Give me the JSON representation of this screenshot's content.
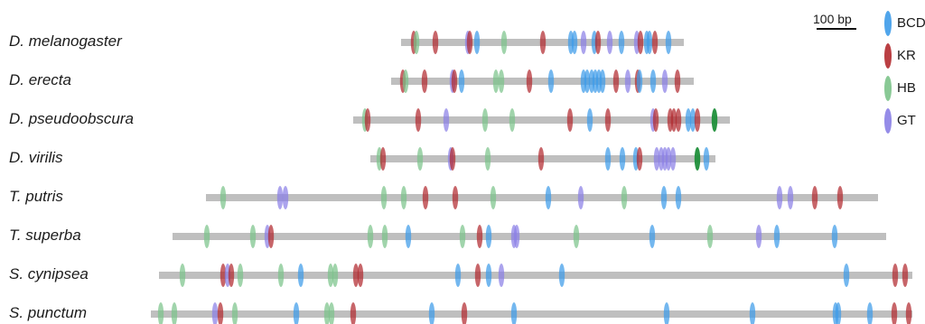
{
  "scale": {
    "label": "100 bp"
  },
  "legend": [
    {
      "name": "BCD",
      "color": "#3d9be9"
    },
    {
      "name": "KR",
      "color": "#b22a2f"
    },
    {
      "name": "HB",
      "color": "#7cc38a"
    },
    {
      "name": "GT",
      "color": "#8a7fe6"
    }
  ],
  "colors": {
    "HB_dark": "#1f8f3a",
    "bar": "#bfbfbf"
  },
  "species": [
    {
      "name": "D. melanogaster",
      "start": 444,
      "end": 757,
      "sites": [
        [
          "KR",
          458
        ],
        [
          "HB",
          461
        ],
        [
          "KR",
          482
        ],
        [
          "GT",
          518
        ],
        [
          "KR",
          520
        ],
        [
          "BCD",
          528
        ],
        [
          "HB",
          558
        ],
        [
          "KR",
          601
        ],
        [
          "BCD",
          632
        ],
        [
          "BCD",
          636
        ],
        [
          "GT",
          646
        ],
        [
          "BCD",
          658
        ],
        [
          "KR",
          662
        ],
        [
          "GT",
          675
        ],
        [
          "BCD",
          688
        ],
        [
          "GT",
          705
        ],
        [
          "KR",
          709
        ],
        [
          "BCD",
          716
        ],
        [
          "BCD",
          719
        ],
        [
          "KR",
          725
        ],
        [
          "BCD",
          740
        ]
      ]
    },
    {
      "name": "D. erecta",
      "start": 433,
      "end": 768,
      "sites": [
        [
          "KR",
          446
        ],
        [
          "HB",
          449
        ],
        [
          "KR",
          470
        ],
        [
          "GT",
          501
        ],
        [
          "KR",
          503
        ],
        [
          "BCD",
          511
        ],
        [
          "HB",
          549
        ],
        [
          "HB",
          555
        ],
        [
          "KR",
          586
        ],
        [
          "BCD",
          610
        ],
        [
          "BCD",
          646
        ],
        [
          "BCD",
          650
        ],
        [
          "BCD",
          655
        ],
        [
          "BCD",
          659
        ],
        [
          "BCD",
          663
        ],
        [
          "BCD",
          667
        ],
        [
          "KR",
          682
        ],
        [
          "GT",
          695
        ],
        [
          "KR",
          706
        ],
        [
          "BCD",
          708
        ],
        [
          "BCD",
          723
        ],
        [
          "GT",
          736
        ],
        [
          "KR",
          750
        ]
      ]
    },
    {
      "name": "D. pseudoobscura",
      "start": 391,
      "end": 808,
      "sites": [
        [
          "HB",
          404
        ],
        [
          "KR",
          407
        ],
        [
          "KR",
          463
        ],
        [
          "GT",
          494
        ],
        [
          "HB",
          537
        ],
        [
          "HB",
          567
        ],
        [
          "KR",
          631
        ],
        [
          "BCD",
          653
        ],
        [
          "KR",
          673
        ],
        [
          "GT",
          723
        ],
        [
          "KR",
          726
        ],
        [
          "KR",
          742
        ],
        [
          "KR",
          746
        ],
        [
          "KR",
          751
        ],
        [
          "BCD",
          762
        ],
        [
          "BCD",
          767
        ],
        [
          "KR",
          772
        ],
        [
          "HB_dark",
          791
        ]
      ]
    },
    {
      "name": "D. virilis",
      "start": 410,
      "end": 792,
      "sites": [
        [
          "HB",
          420
        ],
        [
          "KR",
          424
        ],
        [
          "HB",
          465
        ],
        [
          "GT",
          499
        ],
        [
          "KR",
          501
        ],
        [
          "HB",
          540
        ],
        [
          "KR",
          599
        ],
        [
          "BCD",
          673
        ],
        [
          "BCD",
          689
        ],
        [
          "BCD",
          704
        ],
        [
          "KR",
          708
        ],
        [
          "GT",
          727
        ],
        [
          "GT",
          732
        ],
        [
          "GT",
          736
        ],
        [
          "GT",
          740
        ],
        [
          "GT",
          745
        ],
        [
          "HB_dark",
          772
        ],
        [
          "BCD",
          782
        ]
      ]
    },
    {
      "name": "T. putris",
      "start": 228,
      "end": 972,
      "sites": [
        [
          "HB",
          247
        ],
        [
          "GT",
          310
        ],
        [
          "GT",
          316
        ],
        [
          "HB",
          425
        ],
        [
          "HB",
          447
        ],
        [
          "KR",
          471
        ],
        [
          "KR",
          504
        ],
        [
          "HB",
          546
        ],
        [
          "BCD",
          607
        ],
        [
          "GT",
          643
        ],
        [
          "HB",
          691
        ],
        [
          "BCD",
          735
        ],
        [
          "BCD",
          751
        ],
        [
          "GT",
          863
        ],
        [
          "GT",
          875
        ],
        [
          "KR",
          902
        ],
        [
          "KR",
          930
        ]
      ]
    },
    {
      "name": "T. superba",
      "start": 191,
      "end": 981,
      "sites": [
        [
          "HB",
          229
        ],
        [
          "HB",
          280
        ],
        [
          "GT",
          296
        ],
        [
          "KR",
          300
        ],
        [
          "HB",
          410
        ],
        [
          "HB",
          426
        ],
        [
          "BCD",
          452
        ],
        [
          "HB",
          512
        ],
        [
          "KR",
          531
        ],
        [
          "BCD",
          541
        ],
        [
          "GT",
          569
        ],
        [
          "GT",
          572
        ],
        [
          "HB",
          638
        ],
        [
          "BCD",
          722
        ],
        [
          "HB",
          786
        ],
        [
          "GT",
          840
        ],
        [
          "BCD",
          860
        ],
        [
          "BCD",
          924
        ]
      ]
    },
    {
      "name": "S. cynipsea",
      "start": 176,
      "end": 1010,
      "sites": [
        [
          "HB",
          202
        ],
        [
          "KR",
          247
        ],
        [
          "GT",
          252
        ],
        [
          "KR",
          256
        ],
        [
          "HB",
          266
        ],
        [
          "HB",
          311
        ],
        [
          "BCD",
          333
        ],
        [
          "HB",
          366
        ],
        [
          "HB",
          371
        ],
        [
          "KR",
          394
        ],
        [
          "KR",
          399
        ],
        [
          "BCD",
          507
        ],
        [
          "KR",
          529
        ],
        [
          "BCD",
          541
        ],
        [
          "GT",
          555
        ],
        [
          "BCD",
          622
        ],
        [
          "BCD",
          937
        ],
        [
          "KR",
          991
        ],
        [
          "KR",
          1002
        ]
      ]
    },
    {
      "name": "S. punctum",
      "start": 167,
      "end": 1010,
      "sites": [
        [
          "HB",
          178
        ],
        [
          "HB",
          193
        ],
        [
          "GT",
          238
        ],
        [
          "KR",
          244
        ],
        [
          "HB",
          260
        ],
        [
          "BCD",
          328
        ],
        [
          "HB",
          362
        ],
        [
          "HB",
          367
        ],
        [
          "KR",
          391
        ],
        [
          "BCD",
          478
        ],
        [
          "KR",
          514
        ],
        [
          "BCD",
          569
        ],
        [
          "BCD",
          738
        ],
        [
          "BCD",
          833
        ],
        [
          "BCD",
          925
        ],
        [
          "BCD",
          928
        ],
        [
          "BCD",
          963
        ],
        [
          "KR",
          990
        ],
        [
          "KR",
          1006
        ]
      ]
    }
  ]
}
